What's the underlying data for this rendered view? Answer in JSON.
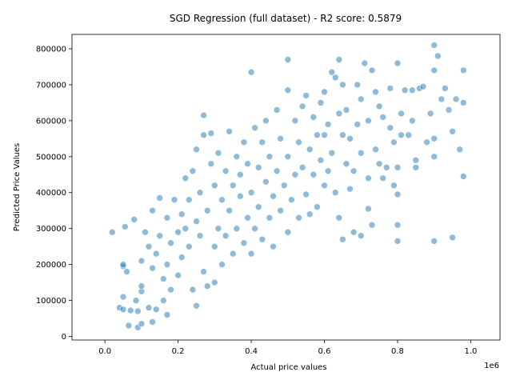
{
  "chart_data": {
    "type": "scatter",
    "title": "SGD Regression (full dataset) - R2 score: 0.5879",
    "xlabel": "Actual price values",
    "ylabel": "Predicted Price Values",
    "x_offset_label": "1e6",
    "xlim": [
      -0.09,
      1.08
    ],
    "ylim": [
      -10000,
      840000
    ],
    "x_ticks": [
      "0.0",
      "0.2",
      "0.4",
      "0.6",
      "0.8",
      "1.0"
    ],
    "y_ticks": [
      "0",
      "100000",
      "200000",
      "300000",
      "400000",
      "500000",
      "600000",
      "700000",
      "800000"
    ],
    "marker_color": "#1f77b4",
    "marker_alpha": 0.5,
    "grid": false,
    "legend": "none",
    "points": [
      [
        0.02,
        290000
      ],
      [
        0.04,
        80000
      ],
      [
        0.05,
        75000
      ],
      [
        0.05,
        195000
      ],
      [
        0.05,
        200000
      ],
      [
        0.05,
        110000
      ],
      [
        0.055,
        305000
      ],
      [
        0.06,
        180000
      ],
      [
        0.065,
        30000
      ],
      [
        0.07,
        72000
      ],
      [
        0.08,
        325000
      ],
      [
        0.085,
        100000
      ],
      [
        0.09,
        25000
      ],
      [
        0.09,
        70000
      ],
      [
        0.1,
        35000
      ],
      [
        0.1,
        125000
      ],
      [
        0.1,
        140000
      ],
      [
        0.1,
        210000
      ],
      [
        0.11,
        290000
      ],
      [
        0.12,
        80000
      ],
      [
        0.12,
        250000
      ],
      [
        0.13,
        40000
      ],
      [
        0.13,
        190000
      ],
      [
        0.13,
        350000
      ],
      [
        0.14,
        75000
      ],
      [
        0.14,
        230000
      ],
      [
        0.15,
        280000
      ],
      [
        0.15,
        385000
      ],
      [
        0.16,
        100000
      ],
      [
        0.16,
        160000
      ],
      [
        0.17,
        200000
      ],
      [
        0.17,
        330000
      ],
      [
        0.17,
        60000
      ],
      [
        0.18,
        260000
      ],
      [
        0.18,
        130000
      ],
      [
        0.19,
        380000
      ],
      [
        0.2,
        170000
      ],
      [
        0.2,
        290000
      ],
      [
        0.21,
        220000
      ],
      [
        0.21,
        340000
      ],
      [
        0.22,
        300000
      ],
      [
        0.22,
        440000
      ],
      [
        0.23,
        250000
      ],
      [
        0.23,
        380000
      ],
      [
        0.24,
        130000
      ],
      [
        0.24,
        460000
      ],
      [
        0.25,
        85000
      ],
      [
        0.25,
        320000
      ],
      [
        0.25,
        520000
      ],
      [
        0.26,
        280000
      ],
      [
        0.26,
        400000
      ],
      [
        0.27,
        180000
      ],
      [
        0.27,
        560000
      ],
      [
        0.27,
        615000
      ],
      [
        0.28,
        140000
      ],
      [
        0.28,
        350000
      ],
      [
        0.29,
        480000
      ],
      [
        0.29,
        565000
      ],
      [
        0.3,
        250000
      ],
      [
        0.3,
        420000
      ],
      [
        0.3,
        150000
      ],
      [
        0.31,
        300000
      ],
      [
        0.31,
        510000
      ],
      [
        0.32,
        200000
      ],
      [
        0.32,
        380000
      ],
      [
        0.33,
        460000
      ],
      [
        0.33,
        280000
      ],
      [
        0.34,
        570000
      ],
      [
        0.34,
        350000
      ],
      [
        0.35,
        420000
      ],
      [
        0.35,
        230000
      ],
      [
        0.36,
        500000
      ],
      [
        0.36,
        300000
      ],
      [
        0.37,
        390000
      ],
      [
        0.37,
        450000
      ],
      [
        0.38,
        260000
      ],
      [
        0.38,
        540000
      ],
      [
        0.39,
        330000
      ],
      [
        0.39,
        480000
      ],
      [
        0.4,
        735000
      ],
      [
        0.4,
        230000
      ],
      [
        0.4,
        400000
      ],
      [
        0.41,
        580000
      ],
      [
        0.41,
        300000
      ],
      [
        0.42,
        470000
      ],
      [
        0.42,
        360000
      ],
      [
        0.43,
        540000
      ],
      [
        0.43,
        270000
      ],
      [
        0.44,
        430000
      ],
      [
        0.44,
        600000
      ],
      [
        0.45,
        330000
      ],
      [
        0.45,
        500000
      ],
      [
        0.46,
        390000
      ],
      [
        0.46,
        250000
      ],
      [
        0.47,
        630000
      ],
      [
        0.47,
        460000
      ],
      [
        0.48,
        350000
      ],
      [
        0.48,
        550000
      ],
      [
        0.49,
        420000
      ],
      [
        0.5,
        770000
      ],
      [
        0.5,
        685000
      ],
      [
        0.5,
        290000
      ],
      [
        0.5,
        500000
      ],
      [
        0.51,
        380000
      ],
      [
        0.52,
        600000
      ],
      [
        0.52,
        450000
      ],
      [
        0.53,
        330000
      ],
      [
        0.53,
        540000
      ],
      [
        0.54,
        640000
      ],
      [
        0.54,
        470000
      ],
      [
        0.55,
        395000
      ],
      [
        0.55,
        670000
      ],
      [
        0.56,
        520000
      ],
      [
        0.56,
        340000
      ],
      [
        0.57,
        610000
      ],
      [
        0.57,
        450000
      ],
      [
        0.58,
        560000
      ],
      [
        0.58,
        360000
      ],
      [
        0.59,
        650000
      ],
      [
        0.59,
        490000
      ],
      [
        0.6,
        680000
      ],
      [
        0.6,
        420000
      ],
      [
        0.6,
        560000
      ],
      [
        0.61,
        590000
      ],
      [
        0.61,
        460000
      ],
      [
        0.62,
        735000
      ],
      [
        0.62,
        510000
      ],
      [
        0.63,
        720000
      ],
      [
        0.63,
        400000
      ],
      [
        0.64,
        770000
      ],
      [
        0.64,
        620000
      ],
      [
        0.64,
        330000
      ],
      [
        0.65,
        700000
      ],
      [
        0.65,
        560000
      ],
      [
        0.65,
        270000
      ],
      [
        0.66,
        480000
      ],
      [
        0.66,
        630000
      ],
      [
        0.67,
        410000
      ],
      [
        0.67,
        550000
      ],
      [
        0.68,
        290000
      ],
      [
        0.68,
        460000
      ],
      [
        0.69,
        700000
      ],
      [
        0.69,
        590000
      ],
      [
        0.7,
        280000
      ],
      [
        0.7,
        510000
      ],
      [
        0.7,
        660000
      ],
      [
        0.71,
        760000
      ],
      [
        0.72,
        440000
      ],
      [
        0.72,
        600000
      ],
      [
        0.72,
        355000
      ],
      [
        0.73,
        740000
      ],
      [
        0.73,
        310000
      ],
      [
        0.74,
        520000
      ],
      [
        0.74,
        680000
      ],
      [
        0.75,
        480000
      ],
      [
        0.75,
        640000
      ],
      [
        0.76,
        440000
      ],
      [
        0.76,
        610000
      ],
      [
        0.77,
        470000
      ],
      [
        0.78,
        580000
      ],
      [
        0.78,
        690000
      ],
      [
        0.79,
        420000
      ],
      [
        0.79,
        540000
      ],
      [
        0.8,
        760000
      ],
      [
        0.8,
        395000
      ],
      [
        0.8,
        310000
      ],
      [
        0.8,
        265000
      ],
      [
        0.8,
        470000
      ],
      [
        0.81,
        560000
      ],
      [
        0.81,
        620000
      ],
      [
        0.82,
        685000
      ],
      [
        0.83,
        560000
      ],
      [
        0.84,
        600000
      ],
      [
        0.84,
        685000
      ],
      [
        0.85,
        490000
      ],
      [
        0.85,
        470000
      ],
      [
        0.86,
        690000
      ],
      [
        0.87,
        695000
      ],
      [
        0.88,
        540000
      ],
      [
        0.89,
        620000
      ],
      [
        0.9,
        810000
      ],
      [
        0.9,
        740000
      ],
      [
        0.9,
        550000
      ],
      [
        0.9,
        265000
      ],
      [
        0.9,
        500000
      ],
      [
        0.91,
        780000
      ],
      [
        0.92,
        660000
      ],
      [
        0.93,
        690000
      ],
      [
        0.94,
        630000
      ],
      [
        0.95,
        275000
      ],
      [
        0.95,
        570000
      ],
      [
        0.96,
        660000
      ],
      [
        0.97,
        520000
      ],
      [
        0.98,
        650000
      ],
      [
        0.98,
        445000
      ],
      [
        0.98,
        740000
      ]
    ]
  }
}
